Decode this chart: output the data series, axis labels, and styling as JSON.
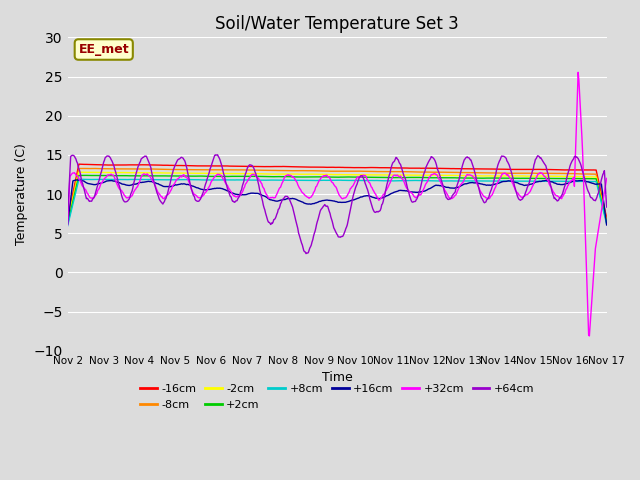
{
  "title": "Soil/Water Temperature Set 3",
  "xlabel": "Time",
  "ylabel": "Temperature (C)",
  "xlim": [
    0,
    15
  ],
  "ylim": [
    -10,
    30
  ],
  "yticks": [
    -10,
    -5,
    0,
    5,
    10,
    15,
    20,
    25,
    30
  ],
  "xtick_labels": [
    "Nov 2",
    "Nov 3",
    "Nov 4",
    "Nov 5",
    "Nov 6",
    "Nov 7",
    "Nov 8",
    "Nov 9",
    "Nov 10",
    "Nov 11",
    "Nov 12",
    "Nov 13",
    "Nov 14",
    "Nov 15",
    "Nov 16",
    "Nov 17"
  ],
  "bg_color": "#dcdcdc",
  "annotation_text": "EE_met",
  "annotation_bg": "#ffffcc",
  "annotation_border": "#888800",
  "series": [
    {
      "label": "-16cm",
      "color": "#ff0000"
    },
    {
      "label": "-8cm",
      "color": "#ff8800"
    },
    {
      "label": "-2cm",
      "color": "#ffff00"
    },
    {
      "label": "+2cm",
      "color": "#00cc00"
    },
    {
      "label": "+8cm",
      "color": "#00cccc"
    },
    {
      "label": "+16cm",
      "color": "#000099"
    },
    {
      "label": "+32cm",
      "color": "#ff00ff"
    },
    {
      "label": "+64cm",
      "color": "#9900cc"
    }
  ],
  "grid_color": "#ffffff",
  "title_fontsize": 12
}
